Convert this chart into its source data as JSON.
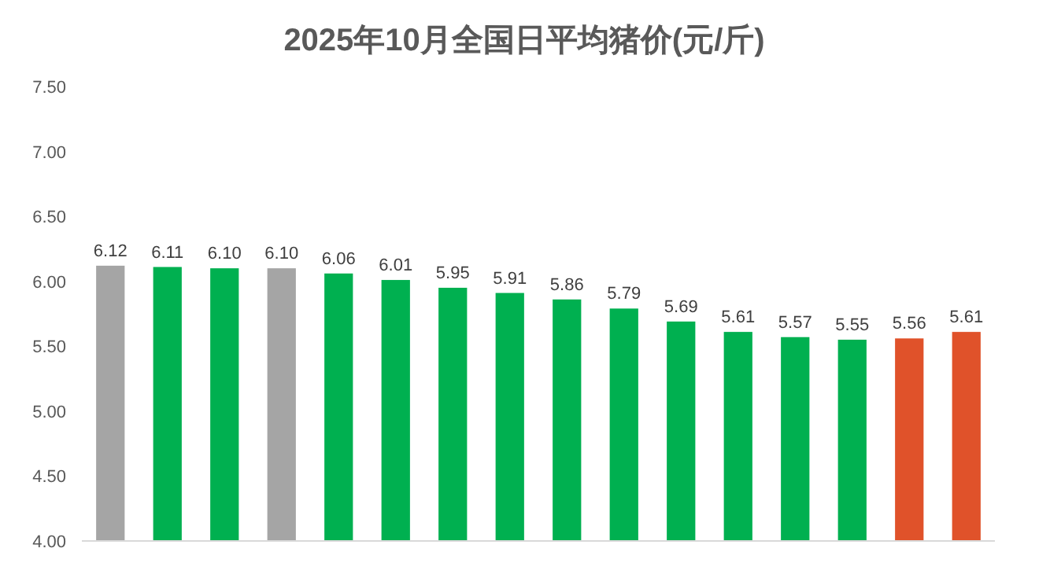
{
  "chart_data": {
    "type": "bar",
    "title": "2025年10月全国日平均猪价(元/斤)",
    "categories": [
      null,
      null,
      null,
      null,
      null,
      null,
      null,
      null,
      null,
      null,
      null,
      null,
      null,
      null,
      null,
      null
    ],
    "values": [
      6.12,
      6.11,
      6.1,
      6.1,
      6.06,
      6.01,
      5.95,
      5.91,
      5.86,
      5.79,
      5.69,
      5.61,
      5.57,
      5.55,
      5.56,
      5.61
    ],
    "colors": [
      "#a5a5a5",
      "#00b050",
      "#00b050",
      "#a5a5a5",
      "#00b050",
      "#00b050",
      "#00b050",
      "#00b050",
      "#00b050",
      "#00b050",
      "#00b050",
      "#00b050",
      "#00b050",
      "#00b050",
      "#e0522a",
      "#e0522a"
    ],
    "ylim": [
      4.0,
      7.5
    ],
    "yticks": [
      {
        "value": 4.0,
        "label": "4.00"
      },
      {
        "value": 4.5,
        "label": "4.50"
      },
      {
        "value": 5.0,
        "label": "5.00"
      },
      {
        "value": 5.5,
        "label": "5.50"
      },
      {
        "value": 6.0,
        "label": "6.00"
      },
      {
        "value": 6.5,
        "label": "6.50"
      },
      {
        "value": 7.0,
        "label": "7.00"
      },
      {
        "value": 7.5,
        "label": "7.50"
      }
    ],
    "value_labels": [
      "6.12",
      "6.11",
      "6.10",
      "6.10",
      "6.06",
      "6.01",
      "5.95",
      "5.91",
      "5.86",
      "5.79",
      "5.69",
      "5.61",
      "5.57",
      "5.55",
      "5.56",
      "5.61"
    ],
    "grid": false
  }
}
